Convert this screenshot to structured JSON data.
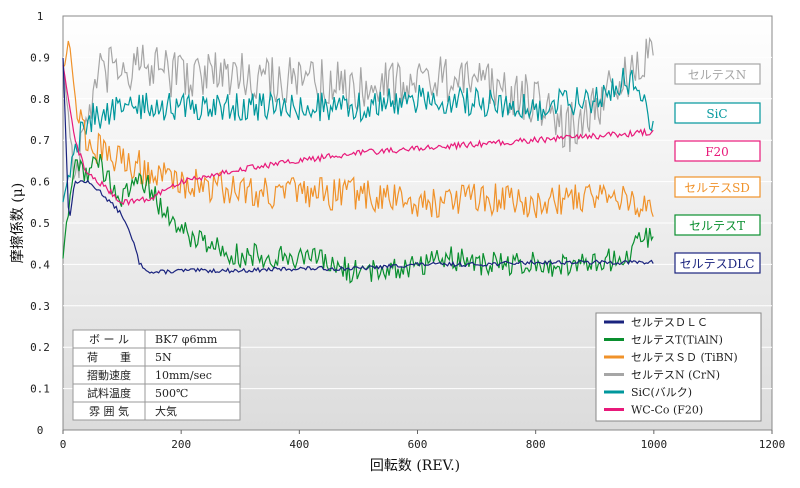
{
  "chart_data": {
    "type": "line",
    "xlabel": "回転数 (REV.)",
    "ylabel": "摩擦係数 (μ)",
    "xlim": [
      0,
      1200
    ],
    "ylim": [
      0,
      1
    ],
    "xticks": [
      "0",
      "200",
      "400",
      "600",
      "800",
      "1000",
      "1200"
    ],
    "yticks": [
      "0",
      "0.1",
      "0.2",
      "0.3",
      "0.4",
      "0.5",
      "0.6",
      "0.7",
      "0.8",
      "0.9",
      "1"
    ],
    "grid": "horizontal",
    "legend_placement": "bottom-right",
    "series": [
      {
        "name": "セルテスDLC",
        "legend": "セルテスＤＬＣ",
        "color": "#1a237e",
        "x": [
          0,
          10,
          20,
          40,
          60,
          80,
          100,
          120,
          130,
          150,
          200,
          300,
          400,
          500,
          600,
          700,
          800,
          900,
          1000
        ],
        "y": [
          0.9,
          0.5,
          0.6,
          0.6,
          0.58,
          0.55,
          0.52,
          0.45,
          0.4,
          0.38,
          0.385,
          0.385,
          0.39,
          0.39,
          0.4,
          0.4,
          0.405,
          0.405,
          0.405
        ]
      },
      {
        "name": "セルテスT",
        "legend": "セルテスT(TiAlN)",
        "color": "#0a8f2f",
        "x": [
          0,
          20,
          40,
          60,
          80,
          100,
          130,
          160,
          200,
          250,
          300,
          400,
          450,
          500,
          600,
          650,
          700,
          800,
          900,
          950,
          1000
        ],
        "y": [
          0.42,
          0.65,
          0.62,
          0.65,
          0.6,
          0.55,
          0.62,
          0.55,
          0.48,
          0.45,
          0.42,
          0.42,
          0.4,
          0.38,
          0.4,
          0.42,
          0.4,
          0.4,
          0.4,
          0.42,
          0.48
        ]
      },
      {
        "name": "セルテスSD",
        "legend": "セルテスＳＤ (TiBN)",
        "color": "#f0922a",
        "x": [
          0,
          10,
          20,
          40,
          60,
          80,
          100,
          150,
          200,
          300,
          400,
          500,
          600,
          700,
          800,
          900,
          950,
          1000
        ],
        "y": [
          0.88,
          0.95,
          0.8,
          0.7,
          0.68,
          0.65,
          0.66,
          0.62,
          0.6,
          0.58,
          0.57,
          0.57,
          0.55,
          0.56,
          0.55,
          0.57,
          0.57,
          0.52
        ]
      },
      {
        "name": "セルテスN",
        "legend": "セルテスN (CrN)",
        "color": "#a6a6a6",
        "x": [
          0,
          20,
          40,
          60,
          100,
          150,
          200,
          300,
          400,
          500,
          600,
          700,
          800,
          850,
          900,
          950,
          1000
        ],
        "y": [
          0.9,
          0.6,
          0.75,
          0.85,
          0.88,
          0.87,
          0.86,
          0.86,
          0.84,
          0.83,
          0.85,
          0.84,
          0.8,
          0.72,
          0.78,
          0.85,
          0.9
        ]
      },
      {
        "name": "SiC",
        "legend": "SiC(バルク)",
        "color": "#00979c",
        "x": [
          0,
          20,
          40,
          60,
          100,
          150,
          200,
          300,
          400,
          500,
          600,
          700,
          800,
          900,
          950,
          980,
          1000
        ],
        "y": [
          0.55,
          0.68,
          0.75,
          0.76,
          0.78,
          0.78,
          0.78,
          0.78,
          0.78,
          0.78,
          0.8,
          0.79,
          0.78,
          0.8,
          0.85,
          0.82,
          0.73
        ]
      },
      {
        "name": "F20",
        "legend": "WC-Co (F20)",
        "color": "#e8197a",
        "x": [
          0,
          20,
          40,
          60,
          100,
          150,
          200,
          300,
          400,
          500,
          600,
          700,
          800,
          900,
          1000
        ],
        "y": [
          0.88,
          0.7,
          0.62,
          0.6,
          0.55,
          0.56,
          0.6,
          0.63,
          0.65,
          0.67,
          0.68,
          0.69,
          0.7,
          0.71,
          0.72
        ]
      }
    ]
  },
  "conditions": {
    "rows": [
      {
        "label": "ボ ー ル",
        "value": "BK7 φ6mm"
      },
      {
        "label": "荷　　重",
        "value": "5N"
      },
      {
        "label": "摺動速度",
        "value": "10mm/sec"
      },
      {
        "label": "試料温度",
        "value": "500℃"
      },
      {
        "label": "雰 囲 気",
        "value": "大気"
      }
    ]
  }
}
